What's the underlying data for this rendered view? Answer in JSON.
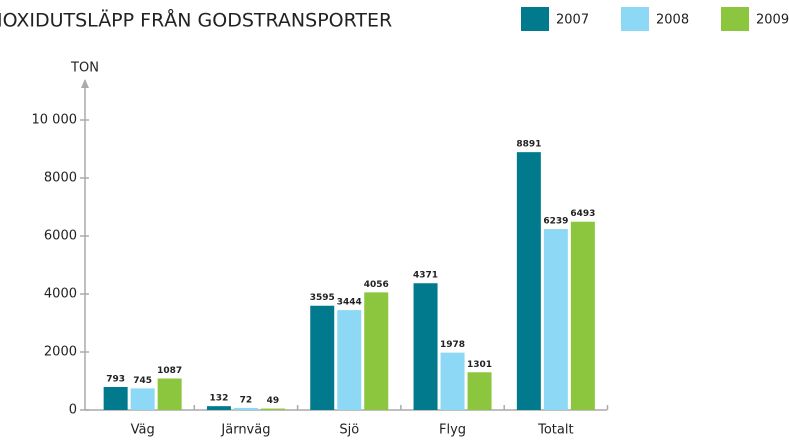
{
  "chart_data": {
    "type": "bar",
    "title": "IOXIDUTSLÄPP FRÅN GODSTRANSPORTER",
    "y_label": "TON",
    "categories": [
      "Väg",
      "Järnväg",
      "Sjö",
      "Flyg",
      "Totalt"
    ],
    "series": [
      {
        "name": "2007",
        "color": "#007a8c",
        "values": [
          793,
          132,
          3595,
          4371,
          8891
        ]
      },
      {
        "name": "2008",
        "color": "#8dd8f4",
        "values": [
          745,
          72,
          3444,
          1978,
          6239
        ]
      },
      {
        "name": "2009",
        "color": "#8cc63e",
        "values": [
          1087,
          49,
          4056,
          1301,
          6493
        ]
      }
    ],
    "ylim": [
      0,
      11000
    ],
    "yticks": [
      0,
      2000,
      4000,
      6000,
      8000,
      {
        "value": 10000,
        "label": "10 000"
      }
    ],
    "legend": "top-right"
  }
}
